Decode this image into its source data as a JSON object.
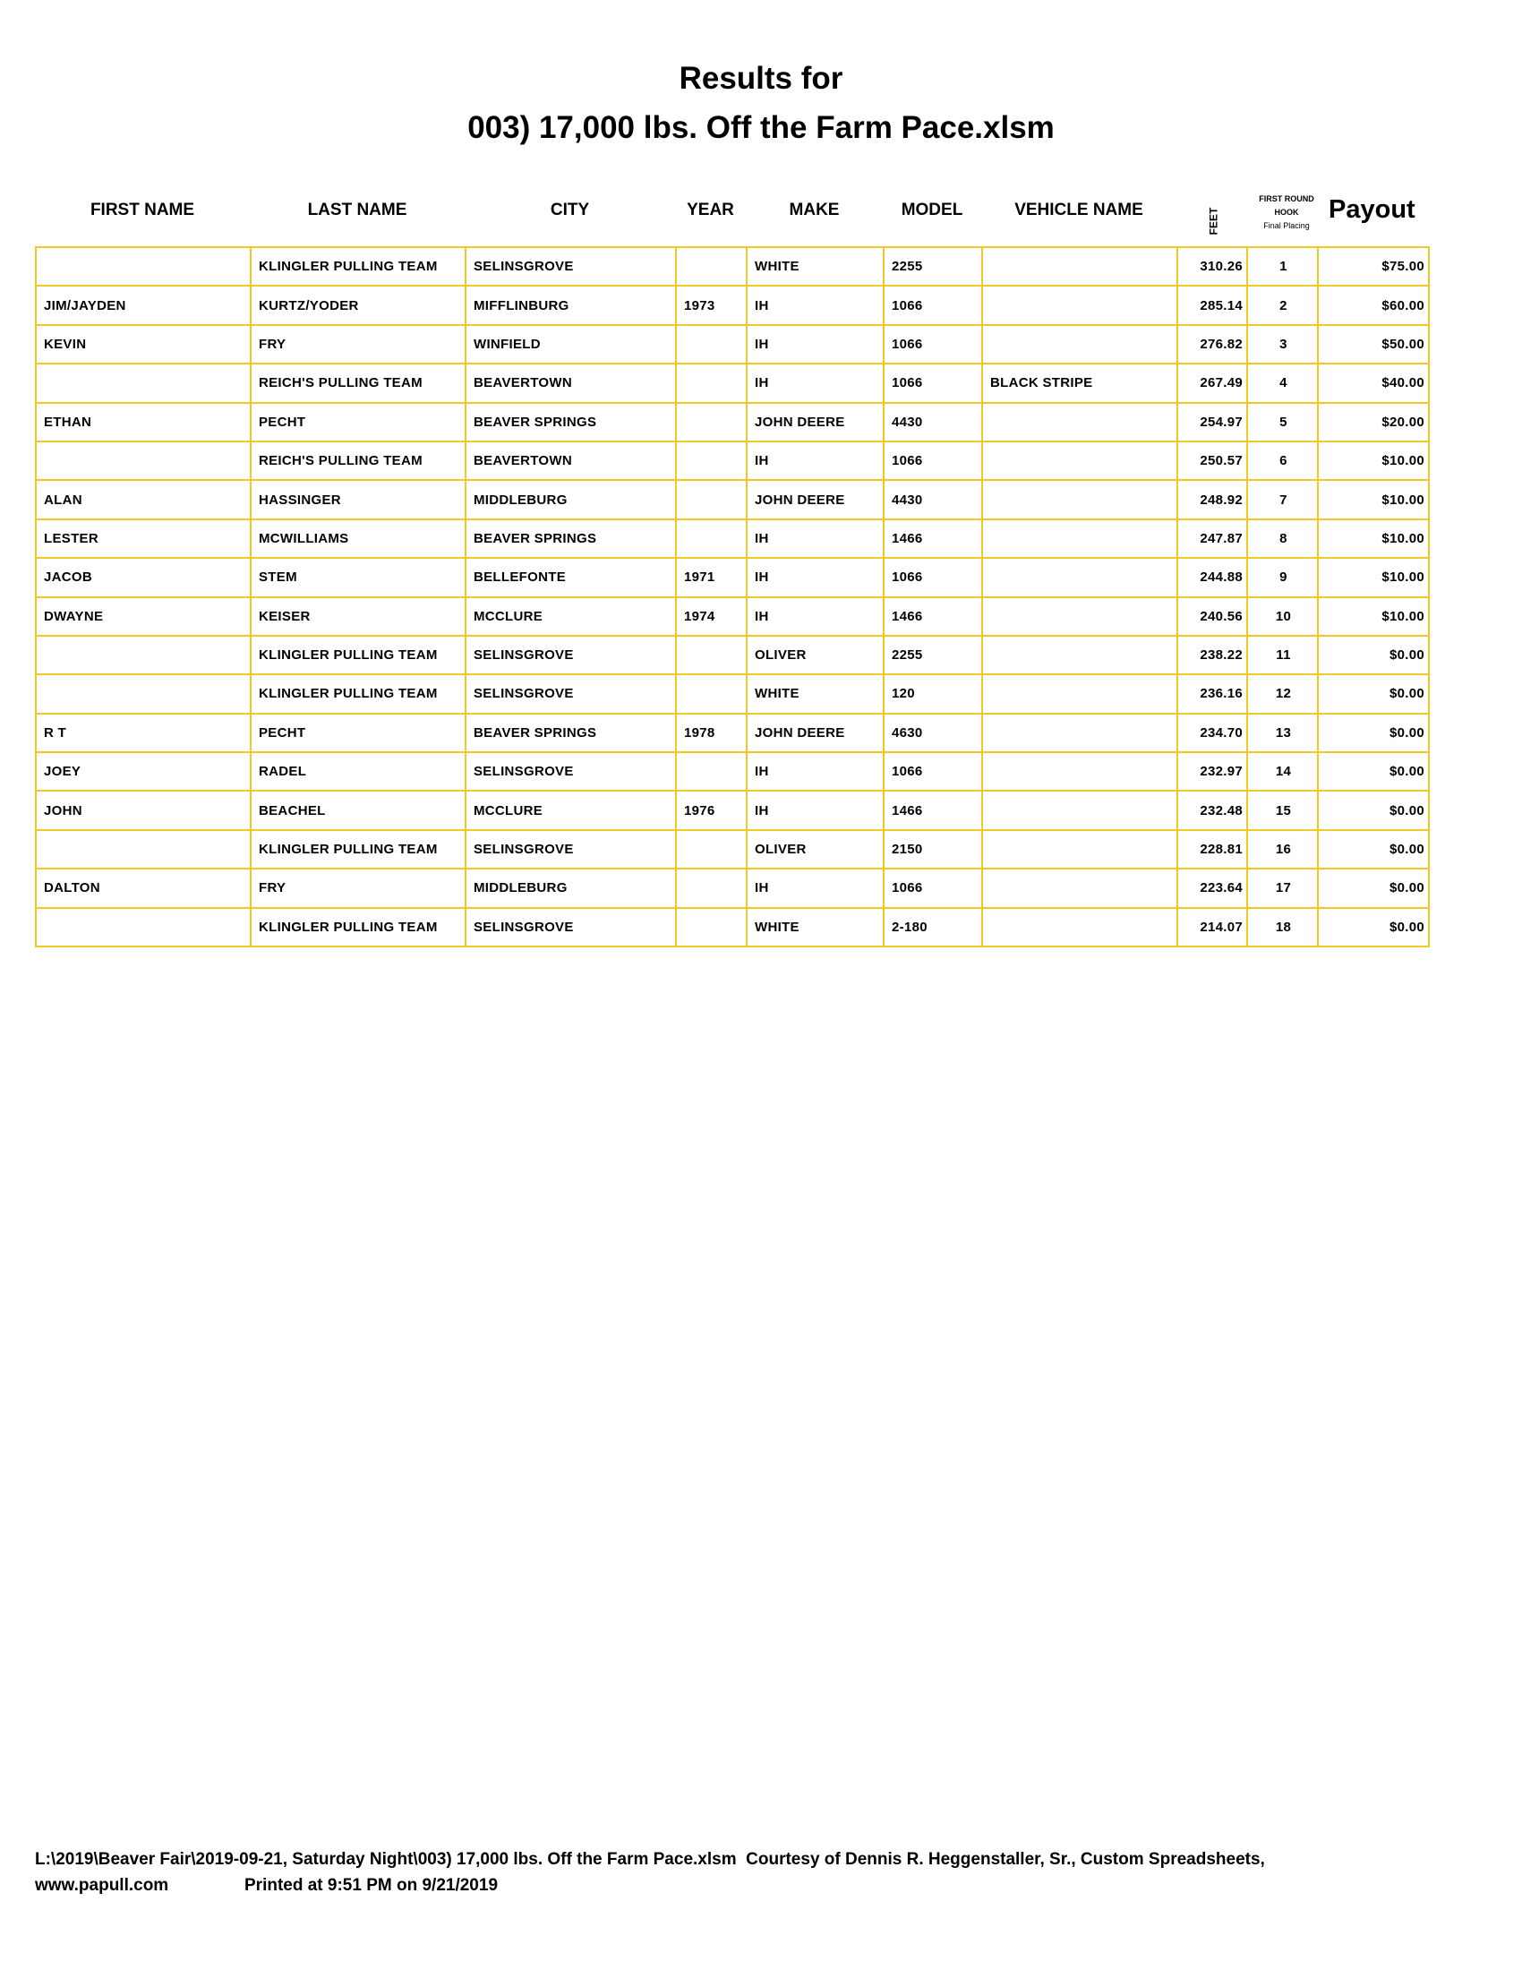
{
  "title_line1": "Results for",
  "title_line2": "003) 17,000 lbs. Off the Farm Pace.xlsm",
  "headers": {
    "first_name": "FIRST NAME",
    "last_name": "LAST NAME",
    "city": "CITY",
    "year": "YEAR",
    "make": "MAKE",
    "model": "MODEL",
    "vehicle_name": "VEHICLE NAME",
    "feet": "FEET",
    "hook_line1": "FIRST ROUND",
    "hook_line2": "HOOK",
    "hook_line3": "Final Placing",
    "payout": "Payout"
  },
  "rows": [
    [
      "",
      "KLINGLER PULLING TEAM",
      "SELINSGROVE",
      "",
      "WHITE",
      "2255",
      "",
      "310.26",
      "1",
      "$75.00"
    ],
    [
      "JIM/JAYDEN",
      "KURTZ/YODER",
      "MIFFLINBURG",
      "1973",
      "IH",
      "1066",
      "",
      "285.14",
      "2",
      "$60.00"
    ],
    [
      "KEVIN",
      "FRY",
      "WINFIELD",
      "",
      "IH",
      "1066",
      "",
      "276.82",
      "3",
      "$50.00"
    ],
    [
      "",
      "REICH'S PULLING TEAM",
      "BEAVERTOWN",
      "",
      "IH",
      "1066",
      "BLACK STRIPE",
      "267.49",
      "4",
      "$40.00"
    ],
    [
      "ETHAN",
      "PECHT",
      "BEAVER SPRINGS",
      "",
      "JOHN DEERE",
      "4430",
      "",
      "254.97",
      "5",
      "$20.00"
    ],
    [
      "",
      "REICH'S PULLING TEAM",
      "BEAVERTOWN",
      "",
      "IH",
      "1066",
      "",
      "250.57",
      "6",
      "$10.00"
    ],
    [
      "ALAN",
      "HASSINGER",
      "MIDDLEBURG",
      "",
      "JOHN DEERE",
      "4430",
      "",
      "248.92",
      "7",
      "$10.00"
    ],
    [
      "LESTER",
      "MCWILLIAMS",
      "BEAVER SPRINGS",
      "",
      "IH",
      "1466",
      "",
      "247.87",
      "8",
      "$10.00"
    ],
    [
      "JACOB",
      "STEM",
      "BELLEFONTE",
      "1971",
      "IH",
      "1066",
      "",
      "244.88",
      "9",
      "$10.00"
    ],
    [
      "DWAYNE",
      "KEISER",
      "MCCLURE",
      "1974",
      "IH",
      "1466",
      "",
      "240.56",
      "10",
      "$10.00"
    ],
    [
      "",
      "KLINGLER PULLING TEAM",
      "SELINSGROVE",
      "",
      "OLIVER",
      "2255",
      "",
      "238.22",
      "11",
      "$0.00"
    ],
    [
      "",
      "KLINGLER PULLING TEAM",
      "SELINSGROVE",
      "",
      "WHITE",
      "120",
      "",
      "236.16",
      "12",
      "$0.00"
    ],
    [
      "R T",
      "PECHT",
      "BEAVER SPRINGS",
      "1978",
      "JOHN DEERE",
      "4630",
      "",
      "234.70",
      "13",
      "$0.00"
    ],
    [
      "JOEY",
      "RADEL",
      "SELINSGROVE",
      "",
      "IH",
      "1066",
      "",
      "232.97",
      "14",
      "$0.00"
    ],
    [
      "JOHN",
      "BEACHEL",
      "MCCLURE",
      "1976",
      "IH",
      "1466",
      "",
      "232.48",
      "15",
      "$0.00"
    ],
    [
      "",
      "KLINGLER PULLING TEAM",
      "SELINSGROVE",
      "",
      "OLIVER",
      "2150",
      "",
      "228.81",
      "16",
      "$0.00"
    ],
    [
      "DALTON",
      "FRY",
      "MIDDLEBURG",
      "",
      "IH",
      "1066",
      "",
      "223.64",
      "17",
      "$0.00"
    ],
    [
      "",
      "KLINGLER PULLING TEAM",
      "SELINSGROVE",
      "",
      "WHITE",
      "2-180",
      "",
      "214.07",
      "18",
      "$0.00"
    ]
  ],
  "footer_line1": "L:\\2019\\Beaver Fair\\2019-09-21, Saturday Night\\003) 17,000 lbs. Off the Farm Pace.xlsm  Courtesy of Dennis R. Heggenstaller, Sr., Custom Spreadsheets,",
  "footer_site": "www.papull.com",
  "footer_printed": "Printed at 9:51 PM on 9/21/2019",
  "colors": {
    "grid": "#f3c824",
    "text": "#000000"
  }
}
